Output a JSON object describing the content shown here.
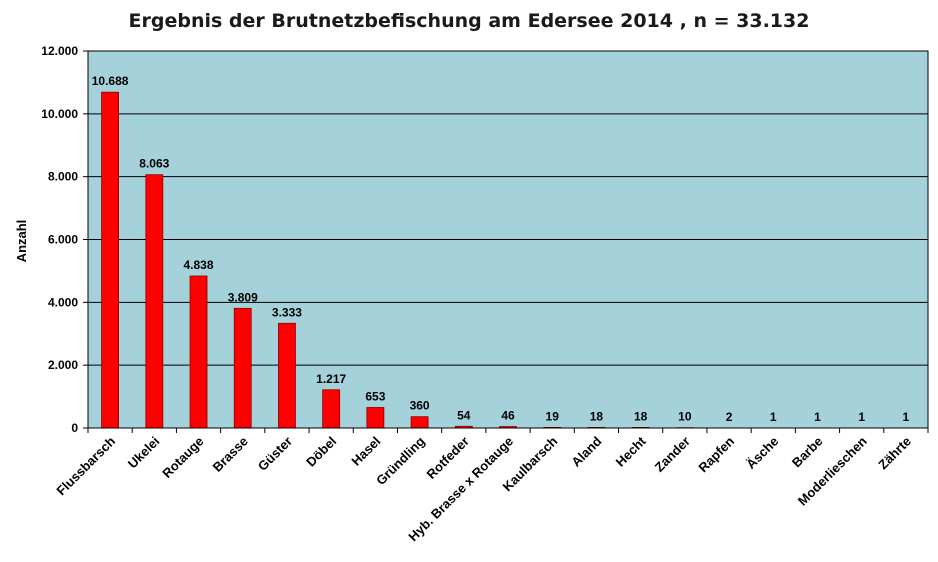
{
  "chart_data": {
    "type": "bar",
    "title": "Ergebnis der Brutnetzbefischung am Edersee  2014 , n = 33.132",
    "xlabel": "",
    "ylabel": "Anzahl",
    "ylim": [
      0,
      12000
    ],
    "yticks": [
      0,
      2000,
      4000,
      6000,
      8000,
      10000,
      12000
    ],
    "ytick_labels": [
      "0",
      "2.000",
      "4.000",
      "6.000",
      "8.000",
      "10.000",
      "12.000"
    ],
    "grid": true,
    "categories": [
      "Flussbarsch",
      "Ukelei",
      "Rotauge",
      "Brasse",
      "Güster",
      "Döbel",
      "Hasel",
      "Gründling",
      "Rotfeder",
      "Hyb. Brasse x Rotauge",
      "Kaulbarsch",
      "Aland",
      "Hecht",
      "Zander",
      "Rapfen",
      "Äsche",
      "Barbe",
      "Moderlieschen",
      "Zährte"
    ],
    "values": [
      10688,
      8063,
      4838,
      3809,
      3333,
      1217,
      653,
      360,
      54,
      46,
      19,
      18,
      18,
      10,
      2,
      1,
      1,
      1,
      1
    ],
    "value_labels": [
      "10.688",
      "8.063",
      "4.838",
      "3.809",
      "3.333",
      "1.217",
      "653",
      "360",
      "54",
      "46",
      "19",
      "18",
      "18",
      "10",
      "2",
      "1",
      "1",
      "1",
      "1"
    ],
    "colors": {
      "plot_bg": "#a4d1da",
      "bar": "#ff0000",
      "bar_edge": "#8b0000",
      "grid": "#000000"
    }
  }
}
